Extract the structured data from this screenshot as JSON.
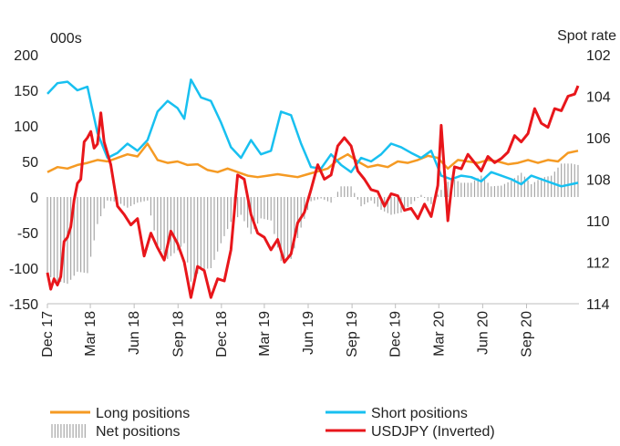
{
  "chart_data": {
    "type": "line",
    "units": {
      "left": "000s",
      "right": "Spot rate"
    },
    "left_axis": {
      "ylim": [
        -150,
        200
      ],
      "ticks": [
        200,
        150,
        100,
        50,
        0,
        -50,
        -100,
        -150
      ]
    },
    "right_axis": {
      "ylim": [
        102,
        114
      ],
      "inverted": true,
      "ticks": [
        102,
        104,
        106,
        108,
        110,
        112,
        114
      ]
    },
    "x_axis": {
      "range": [
        "2017-12-01",
        "2020-12-20"
      ],
      "ticks": [
        "Dec 17",
        "Mar 18",
        "Jun 18",
        "Sep 18",
        "Dec 18",
        "Mar 19",
        "Jun 19",
        "Sep 19",
        "Dec 19",
        "Mar 20",
        "Jun 20",
        "Sep 20"
      ],
      "tick_dates": [
        "2017-12-01",
        "2018-03-01",
        "2018-06-01",
        "2018-09-01",
        "2018-12-01",
        "2019-03-01",
        "2019-06-01",
        "2019-09-01",
        "2019-12-01",
        "2020-03-01",
        "2020-06-01",
        "2020-09-01"
      ]
    },
    "grid": false,
    "legend_position": "bottom",
    "colors": {
      "long": "#F59A23",
      "short": "#18C0F0",
      "net": "#A6A6A6",
      "usdjpy": "#E8161B"
    },
    "series": [
      {
        "name": "Long positions",
        "axis": "left",
        "style": "line",
        "x": [
          "2017-12-01",
          "2017-12-22",
          "2018-01-12",
          "2018-02-02",
          "2018-02-23",
          "2018-03-16",
          "2018-04-06",
          "2018-04-27",
          "2018-05-18",
          "2018-06-08",
          "2018-06-29",
          "2018-07-20",
          "2018-08-10",
          "2018-08-31",
          "2018-09-21",
          "2018-10-12",
          "2018-11-02",
          "2018-11-23",
          "2018-12-14",
          "2019-01-04",
          "2019-01-25",
          "2019-02-15",
          "2019-03-08",
          "2019-03-29",
          "2019-04-19",
          "2019-05-10",
          "2019-05-31",
          "2019-06-21",
          "2019-07-12",
          "2019-08-02",
          "2019-08-23",
          "2019-09-13",
          "2019-10-04",
          "2019-10-25",
          "2019-11-15",
          "2019-12-06",
          "2019-12-27",
          "2020-01-17",
          "2020-02-07",
          "2020-02-28",
          "2020-03-20",
          "2020-04-10",
          "2020-05-01",
          "2020-05-22",
          "2020-06-12",
          "2020-07-03",
          "2020-07-24",
          "2020-08-14",
          "2020-09-04",
          "2020-09-25",
          "2020-10-16",
          "2020-11-06",
          "2020-11-27",
          "2020-12-18"
        ],
        "values": [
          35,
          42,
          40,
          45,
          48,
          52,
          50,
          55,
          60,
          57,
          75,
          52,
          48,
          50,
          45,
          46,
          38,
          35,
          40,
          35,
          30,
          28,
          30,
          32,
          30,
          28,
          32,
          36,
          40,
          52,
          60,
          50,
          42,
          45,
          42,
          50,
          48,
          52,
          58,
          55,
          40,
          52,
          50,
          48,
          52,
          50,
          46,
          48,
          52,
          48,
          52,
          50,
          62,
          65
        ]
      },
      {
        "name": "Short positions",
        "axis": "left",
        "style": "line",
        "x": [
          "2017-12-01",
          "2017-12-22",
          "2018-01-12",
          "2018-02-02",
          "2018-02-23",
          "2018-03-16",
          "2018-04-06",
          "2018-04-27",
          "2018-05-18",
          "2018-06-08",
          "2018-06-29",
          "2018-07-20",
          "2018-08-10",
          "2018-08-31",
          "2018-09-14",
          "2018-09-28",
          "2018-10-19",
          "2018-11-09",
          "2018-11-30",
          "2018-12-21",
          "2019-01-11",
          "2019-02-01",
          "2019-02-22",
          "2019-03-15",
          "2019-04-05",
          "2019-04-26",
          "2019-05-17",
          "2019-06-07",
          "2019-06-28",
          "2019-07-19",
          "2019-08-09",
          "2019-08-30",
          "2019-09-20",
          "2019-10-11",
          "2019-11-01",
          "2019-11-22",
          "2019-12-13",
          "2020-01-03",
          "2020-01-24",
          "2020-02-14",
          "2020-03-06",
          "2020-03-27",
          "2020-04-17",
          "2020-05-08",
          "2020-05-29",
          "2020-06-19",
          "2020-07-10",
          "2020-07-31",
          "2020-08-21",
          "2020-09-11",
          "2020-10-02",
          "2020-10-23",
          "2020-11-13",
          "2020-12-04",
          "2020-12-18"
        ],
        "values": [
          145,
          160,
          162,
          150,
          155,
          90,
          55,
          62,
          75,
          65,
          80,
          120,
          135,
          125,
          110,
          165,
          140,
          135,
          105,
          70,
          55,
          80,
          60,
          65,
          120,
          115,
          75,
          42,
          40,
          60,
          45,
          35,
          55,
          50,
          60,
          75,
          70,
          62,
          55,
          65,
          30,
          25,
          30,
          28,
          22,
          35,
          30,
          25,
          18,
          30,
          25,
          20,
          15,
          18,
          20
        ]
      },
      {
        "name": "Net positions",
        "axis": "left",
        "style": "bars",
        "x": [
          "2017-12-01",
          "2017-12-22",
          "2018-01-12",
          "2018-02-02",
          "2018-02-23",
          "2018-03-16",
          "2018-04-06",
          "2018-04-27",
          "2018-05-18",
          "2018-06-08",
          "2018-06-29",
          "2018-07-20",
          "2018-08-10",
          "2018-08-31",
          "2018-09-14",
          "2018-09-28",
          "2018-10-19",
          "2018-11-09",
          "2018-11-30",
          "2018-12-21",
          "2019-01-11",
          "2019-02-01",
          "2019-02-22",
          "2019-03-15",
          "2019-04-05",
          "2019-04-26",
          "2019-05-17",
          "2019-06-07",
          "2019-06-28",
          "2019-07-19",
          "2019-08-09",
          "2019-08-30",
          "2019-09-20",
          "2019-10-11",
          "2019-11-01",
          "2019-11-22",
          "2019-12-13",
          "2020-01-03",
          "2020-01-24",
          "2020-02-14",
          "2020-03-06",
          "2020-03-27",
          "2020-04-17",
          "2020-05-08",
          "2020-05-29",
          "2020-06-19",
          "2020-07-10",
          "2020-07-31",
          "2020-08-21",
          "2020-09-11",
          "2020-10-02",
          "2020-10-23",
          "2020-11-13",
          "2020-12-04",
          "2020-12-18"
        ],
        "values": [
          -110,
          -118,
          -122,
          -105,
          -107,
          -38,
          -5,
          -7,
          -15,
          -8,
          -5,
          -68,
          -87,
          -75,
          -65,
          -119,
          -102,
          -100,
          -65,
          -35,
          -25,
          -52,
          -30,
          -33,
          -90,
          -87,
          -43,
          -6,
          -2,
          -8,
          15,
          15,
          -13,
          -5,
          -18,
          -25,
          -22,
          -10,
          3,
          -10,
          10,
          27,
          20,
          20,
          30,
          15,
          16,
          23,
          34,
          18,
          27,
          30,
          47,
          47,
          45
        ]
      },
      {
        "name": "USDJPY (Inverted)",
        "axis": "right",
        "style": "line",
        "x": [
          "2017-12-01",
          "2017-12-08",
          "2017-12-15",
          "2017-12-22",
          "2017-12-29",
          "2018-01-05",
          "2018-01-12",
          "2018-01-19",
          "2018-01-26",
          "2018-02-02",
          "2018-02-09",
          "2018-02-16",
          "2018-02-23",
          "2018-03-02",
          "2018-03-09",
          "2018-03-16",
          "2018-03-23",
          "2018-03-30",
          "2018-04-13",
          "2018-04-27",
          "2018-05-11",
          "2018-05-25",
          "2018-06-08",
          "2018-06-22",
          "2018-07-06",
          "2018-07-20",
          "2018-08-03",
          "2018-08-17",
          "2018-08-31",
          "2018-09-14",
          "2018-09-28",
          "2018-10-12",
          "2018-10-26",
          "2018-11-09",
          "2018-11-23",
          "2018-12-07",
          "2018-12-21",
          "2019-01-04",
          "2019-01-18",
          "2019-02-01",
          "2019-02-15",
          "2019-03-01",
          "2019-03-15",
          "2019-03-29",
          "2019-04-12",
          "2019-04-26",
          "2019-05-10",
          "2019-05-24",
          "2019-06-07",
          "2019-06-21",
          "2019-07-05",
          "2019-07-19",
          "2019-08-02",
          "2019-08-16",
          "2019-08-30",
          "2019-09-13",
          "2019-09-27",
          "2019-10-11",
          "2019-10-25",
          "2019-11-08",
          "2019-11-22",
          "2019-12-06",
          "2019-12-20",
          "2020-01-03",
          "2020-01-17",
          "2020-01-31",
          "2020-02-14",
          "2020-02-28",
          "2020-03-06",
          "2020-03-13",
          "2020-03-20",
          "2020-03-27",
          "2020-04-03",
          "2020-04-17",
          "2020-05-01",
          "2020-05-15",
          "2020-05-29",
          "2020-06-12",
          "2020-06-26",
          "2020-07-10",
          "2020-07-24",
          "2020-08-07",
          "2020-08-21",
          "2020-09-04",
          "2020-09-18",
          "2020-10-02",
          "2020-10-16",
          "2020-10-30",
          "2020-11-13",
          "2020-11-27",
          "2020-12-11",
          "2020-12-18"
        ],
        "values": [
          112.5,
          113.3,
          112.8,
          113.1,
          112.7,
          111.0,
          110.8,
          110.3,
          109.0,
          108.2,
          108.0,
          106.2,
          106.0,
          105.7,
          106.5,
          106.3,
          104.8,
          106.2,
          107.3,
          109.3,
          109.7,
          110.2,
          109.9,
          111.7,
          110.6,
          111.3,
          111.9,
          110.5,
          111.1,
          112.0,
          113.7,
          112.2,
          112.4,
          113.7,
          112.8,
          112.9,
          111.4,
          107.8,
          108.0,
          109.7,
          110.6,
          110.8,
          111.4,
          110.9,
          112.0,
          111.6,
          110.1,
          109.6,
          108.5,
          107.3,
          108.0,
          107.8,
          106.4,
          106.0,
          106.4,
          107.6,
          108.0,
          108.5,
          108.6,
          109.3,
          108.7,
          108.8,
          109.5,
          109.4,
          109.9,
          109.2,
          109.8,
          108.3,
          105.4,
          107.7,
          110.0,
          108.5,
          107.4,
          107.5,
          106.8,
          107.2,
          107.6,
          106.9,
          107.2,
          107.0,
          106.7,
          105.9,
          106.2,
          105.8,
          104.6,
          105.3,
          105.5,
          104.6,
          104.7,
          104.0,
          103.9,
          103.5
        ]
      }
    ]
  },
  "legend": [
    {
      "label": "Long positions",
      "series_key": "long",
      "swatch": "line"
    },
    {
      "label": "Short positions",
      "series_key": "short",
      "swatch": "line"
    },
    {
      "label": "Net positions",
      "series_key": "net",
      "swatch": "bars"
    },
    {
      "label": "USDJPY (Inverted)",
      "series_key": "usdjpy",
      "swatch": "line"
    }
  ]
}
